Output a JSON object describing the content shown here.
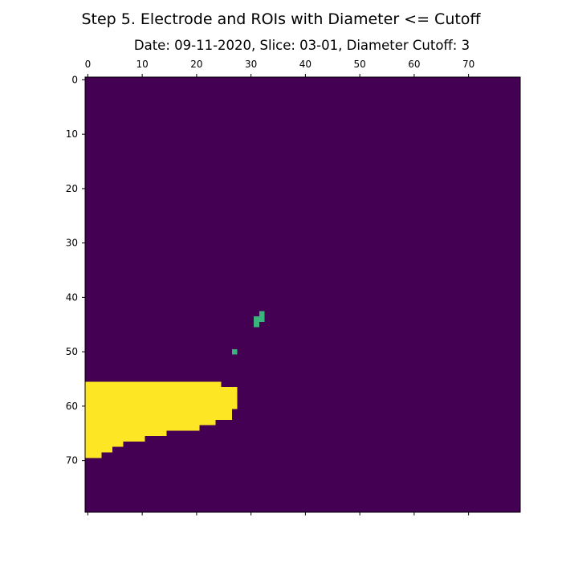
{
  "chart_data": {
    "type": "heatmap",
    "suptitle": "Step 5. Electrode and ROIs with Diameter <= Cutoff",
    "title": "Date: 09-11-2020, Slice: 03-01, Diameter Cutoff: 3",
    "xlabel": "",
    "ylabel": "",
    "grid": false,
    "x_axis_position": "top",
    "xlim": [
      -0.5,
      79.5
    ],
    "ylim": [
      79.5,
      -0.5
    ],
    "x_ticks": [
      0,
      10,
      20,
      30,
      40,
      50,
      60,
      70
    ],
    "y_ticks": [
      0,
      10,
      20,
      30,
      40,
      50,
      60,
      70
    ],
    "colormap": "viridis",
    "background_value": 0,
    "colors": {
      "background": "#440154",
      "roi": "#3ab37c",
      "electrode": "#fde725"
    },
    "roi_pixels": [
      [
        32,
        43
      ],
      [
        32,
        44
      ],
      [
        31,
        44
      ],
      [
        31,
        45
      ],
      [
        27,
        50
      ]
    ],
    "electrode_rows": [
      {
        "y": 56,
        "x_start": 0,
        "x_end": 24
      },
      {
        "y": 57,
        "x_start": 0,
        "x_end": 27
      },
      {
        "y": 58,
        "x_start": 0,
        "x_end": 27
      },
      {
        "y": 59,
        "x_start": 0,
        "x_end": 27
      },
      {
        "y": 60,
        "x_start": 0,
        "x_end": 27
      },
      {
        "y": 61,
        "x_start": 0,
        "x_end": 26
      },
      {
        "y": 62,
        "x_start": 0,
        "x_end": 26
      },
      {
        "y": 63,
        "x_start": 0,
        "x_end": 23
      },
      {
        "y": 64,
        "x_start": 0,
        "x_end": 20
      },
      {
        "y": 65,
        "x_start": 0,
        "x_end": 14
      },
      {
        "y": 66,
        "x_start": 0,
        "x_end": 10
      },
      {
        "y": 67,
        "x_start": 0,
        "x_end": 6
      },
      {
        "y": 68,
        "x_start": 0,
        "x_end": 4
      },
      {
        "y": 69,
        "x_start": 0,
        "x_end": 2
      }
    ]
  }
}
